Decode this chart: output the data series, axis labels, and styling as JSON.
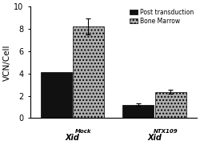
{
  "bar_values": [
    [
      4.1,
      8.2
    ],
    [
      1.2,
      2.35
    ]
  ],
  "bar_errors": [
    [
      0.0,
      0.7
    ],
    [
      0.12,
      0.18
    ]
  ],
  "bar_colors": [
    "#111111",
    "#b0b0b0"
  ],
  "bar_hatches": [
    null,
    "...."
  ],
  "legend_labels": [
    "Post transduction",
    "Bone Marrow"
  ],
  "ylabel": "VCN/Cell",
  "ylim": [
    0,
    10
  ],
  "yticks": [
    0,
    2,
    4,
    6,
    8,
    10
  ],
  "bar_width": 0.28,
  "group_centers": [
    0.38,
    1.12
  ],
  "group_label_bases": [
    "Xid",
    "Xid"
  ],
  "group_sups": [
    "Mock",
    "NTX109"
  ],
  "figsize": [
    2.5,
    1.81
  ],
  "dpi": 100
}
